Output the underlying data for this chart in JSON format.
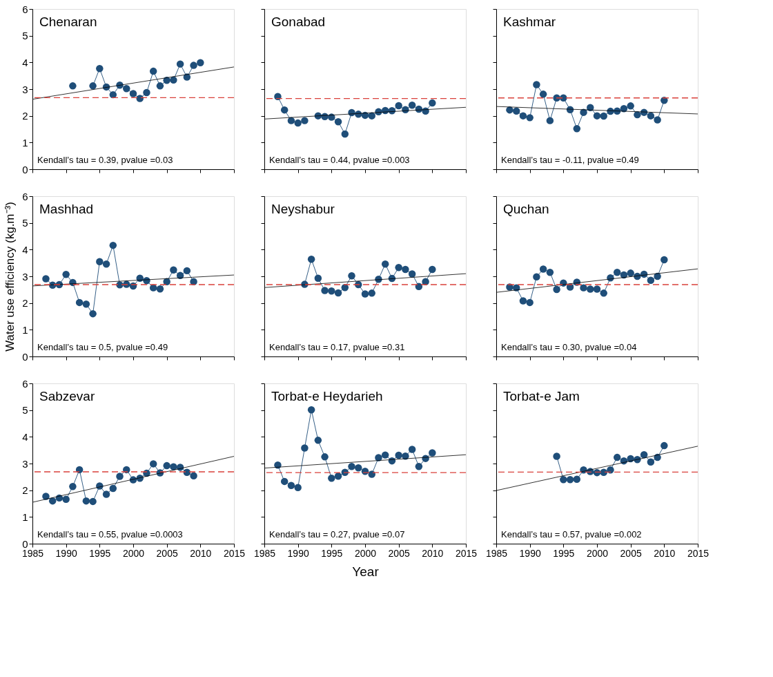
{
  "chart_data": [
    {
      "type": "line",
      "title": "Chenaran",
      "annotations": [
        "Kendall’s tau = 0.39, pvalue =0.03"
      ],
      "tick_labels": "y",
      "xlim": [
        1985,
        2015
      ],
      "xticks": [
        1985,
        1990,
        1995,
        2000,
        2005,
        2010,
        2015
      ],
      "ylim": [
        0,
        6
      ],
      "yticks": [
        0,
        1,
        2,
        3,
        4,
        5,
        6
      ],
      "grid": false,
      "series": [
        {
          "color": "#1f4e79",
          "marker": "circle",
          "x": [
            1991,
            1992,
            1993,
            1994,
            1995,
            1996,
            1997,
            1998,
            1999,
            2000,
            2001,
            2002,
            2003,
            2004,
            2005,
            2006,
            2007,
            2008,
            2009,
            2010
          ],
          "values": [
            3.12,
            null,
            null,
            3.12,
            3.77,
            3.08,
            2.79,
            3.15,
            3.02,
            2.83,
            2.65,
            2.87,
            3.67,
            3.12,
            3.33,
            3.34,
            3.94,
            3.45,
            3.89,
            3.99
          ]
        },
        {
          "type": "line",
          "color": "#000000",
          "marker": "none",
          "x": [
            1985,
            2015
          ],
          "values": [
            2.62,
            3.83
          ]
        }
      ],
      "ref_lines": [
        {
          "axis": "y",
          "value": 2.68,
          "color": "#d9403a",
          "line_style": "dashed"
        }
      ]
    },
    {
      "type": "line",
      "title": "Gonabad",
      "annotations": [
        "Kendall’s tau = 0.44, pvalue =0.003"
      ],
      "tick_labels": false,
      "xlim": [
        1985,
        2015
      ],
      "xticks": [
        1985,
        1990,
        1995,
        2000,
        2005,
        2010,
        2015
      ],
      "ylim": [
        0,
        6
      ],
      "yticks": [
        0,
        1,
        2,
        3,
        4,
        5,
        6
      ],
      "grid": false,
      "series": [
        {
          "color": "#1f4e79",
          "marker": "circle",
          "x": [
            1987,
            1988,
            1989,
            1990,
            1991,
            1992,
            1993,
            1994,
            1995,
            1996,
            1997,
            1998,
            1999,
            2000,
            2001,
            2002,
            2003,
            2004,
            2005,
            2006,
            2007,
            2008,
            2009,
            2010
          ],
          "values": [
            2.72,
            2.22,
            1.82,
            1.73,
            1.82,
            null,
            2.0,
            1.97,
            1.95,
            1.78,
            1.32,
            2.12,
            2.06,
            2.02,
            2.0,
            2.15,
            2.2,
            2.19,
            2.38,
            2.23,
            2.4,
            2.25,
            2.18,
            2.48
          ]
        },
        {
          "type": "line",
          "color": "#000000",
          "marker": "none",
          "x": [
            1985,
            2015
          ],
          "values": [
            1.88,
            2.32
          ]
        }
      ],
      "ref_lines": [
        {
          "axis": "y",
          "value": 2.65,
          "color": "#d9403a",
          "line_style": "dashed"
        }
      ]
    },
    {
      "type": "line",
      "title": "Kashmar",
      "annotations": [
        "Kendall’s tau = -0.11, pvalue =0.49"
      ],
      "tick_labels": false,
      "xlim": [
        1985,
        2015
      ],
      "xticks": [
        1985,
        1990,
        1995,
        2000,
        2005,
        2010,
        2015
      ],
      "ylim": [
        0,
        6
      ],
      "yticks": [
        0,
        1,
        2,
        3,
        4,
        5,
        6
      ],
      "grid": false,
      "series": [
        {
          "color": "#1f4e79",
          "marker": "circle",
          "x": [
            1987,
            1988,
            1989,
            1990,
            1991,
            1992,
            1993,
            1994,
            1995,
            1996,
            1997,
            1998,
            1999,
            2000,
            2001,
            2002,
            2003,
            2004,
            2005,
            2006,
            2007,
            2008,
            2009,
            2010
          ],
          "values": [
            2.22,
            2.18,
            2.0,
            1.93,
            3.17,
            2.81,
            1.82,
            2.67,
            2.67,
            2.23,
            1.52,
            2.13,
            2.31,
            2.0,
            1.99,
            2.17,
            2.18,
            2.27,
            2.37,
            2.04,
            2.13,
            2.0,
            1.85,
            2.58
          ]
        },
        {
          "type": "line",
          "color": "#000000",
          "marker": "none",
          "x": [
            1985,
            2015
          ],
          "values": [
            2.35,
            2.07
          ]
        }
      ],
      "ref_lines": [
        {
          "axis": "y",
          "value": 2.67,
          "color": "#d9403a",
          "line_style": "dashed"
        }
      ]
    },
    {
      "type": "line",
      "title": "Mashhad",
      "ylabel": "Water use efficiency (kg.m⁻³)",
      "annotations": [
        "Kendall’s tau = 0.5, pvalue =0.49"
      ],
      "tick_labels": "y",
      "xlim": [
        1985,
        2015
      ],
      "xticks": [
        1985,
        1990,
        1995,
        2000,
        2005,
        2010,
        2015
      ],
      "ylim": [
        0,
        6
      ],
      "yticks": [
        0,
        1,
        2,
        3,
        4,
        5,
        6
      ],
      "grid": false,
      "series": [
        {
          "color": "#1f4e79",
          "marker": "circle",
          "x": [
            1987,
            1988,
            1989,
            1990,
            1991,
            1992,
            1993,
            1994,
            1995,
            1996,
            1997,
            1998,
            1999,
            2000,
            2001,
            2002,
            2003,
            2004,
            2005,
            2006,
            2007,
            2008,
            2009
          ],
          "values": [
            2.91,
            2.67,
            2.69,
            3.07,
            2.77,
            2.02,
            1.96,
            1.6,
            3.55,
            3.46,
            4.16,
            2.68,
            2.7,
            2.64,
            2.93,
            2.84,
            2.57,
            2.53,
            2.8,
            3.24,
            3.03,
            3.21,
            2.8
          ]
        },
        {
          "type": "line",
          "color": "#000000",
          "marker": "none",
          "x": [
            1985,
            2015
          ],
          "values": [
            2.64,
            3.05
          ]
        }
      ],
      "ref_lines": [
        {
          "axis": "y",
          "value": 2.69,
          "color": "#d9403a",
          "line_style": "dashed"
        }
      ]
    },
    {
      "type": "line",
      "title": "Neyshabur",
      "annotations": [
        "Kendall’s tau = 0.17, pvalue =0.31"
      ],
      "tick_labels": false,
      "xlim": [
        1985,
        2015
      ],
      "xticks": [
        1985,
        1990,
        1995,
        2000,
        2005,
        2010,
        2015
      ],
      "ylim": [
        0,
        6
      ],
      "yticks": [
        0,
        1,
        2,
        3,
        4,
        5,
        6
      ],
      "grid": false,
      "series": [
        {
          "color": "#1f4e79",
          "marker": "circle",
          "x": [
            1991,
            1992,
            1993,
            1994,
            1995,
            1996,
            1997,
            1998,
            1999,
            2000,
            2001,
            2002,
            2003,
            2004,
            2005,
            2006,
            2007,
            2008,
            2009,
            2010
          ],
          "values": [
            2.7,
            3.64,
            2.93,
            2.47,
            2.45,
            2.38,
            2.58,
            3.02,
            2.69,
            2.34,
            2.37,
            2.89,
            3.46,
            2.92,
            3.33,
            3.26,
            3.09,
            2.62,
            2.8,
            3.26
          ]
        },
        {
          "type": "line",
          "color": "#000000",
          "marker": "none",
          "x": [
            1985,
            2015
          ],
          "values": [
            2.58,
            3.1
          ]
        }
      ],
      "ref_lines": [
        {
          "axis": "y",
          "value": 2.69,
          "color": "#d9403a",
          "line_style": "dashed"
        }
      ]
    },
    {
      "type": "line",
      "title": "Quchan",
      "annotations": [
        "Kendall’s tau = 0.30, pvalue =0.04"
      ],
      "tick_labels": false,
      "xlim": [
        1985,
        2015
      ],
      "xticks": [
        1985,
        1990,
        1995,
        2000,
        2005,
        2010,
        2015
      ],
      "ylim": [
        0,
        6
      ],
      "yticks": [
        0,
        1,
        2,
        3,
        4,
        5,
        6
      ],
      "grid": false,
      "series": [
        {
          "color": "#1f4e79",
          "marker": "circle",
          "x": [
            1987,
            1988,
            1989,
            1990,
            1991,
            1992,
            1993,
            1994,
            1995,
            1996,
            1997,
            1998,
            1999,
            2000,
            2001,
            2002,
            2003,
            2004,
            2005,
            2006,
            2007,
            2008,
            2009,
            2010
          ],
          "values": [
            2.6,
            2.57,
            2.08,
            2.02,
            2.98,
            3.27,
            3.15,
            2.51,
            2.75,
            2.6,
            2.78,
            2.57,
            2.52,
            2.52,
            2.37,
            2.94,
            3.15,
            3.05,
            3.12,
            3.0,
            3.08,
            2.85,
            3.0,
            3.62
          ]
        },
        {
          "type": "line",
          "color": "#000000",
          "marker": "none",
          "x": [
            1985,
            2015
          ],
          "values": [
            2.4,
            3.28
          ]
        }
      ],
      "ref_lines": [
        {
          "axis": "y",
          "value": 2.69,
          "color": "#d9403a",
          "line_style": "dashed"
        }
      ]
    },
    {
      "type": "line",
      "title": "Sabzevar",
      "annotations": [
        "Kendall’s tau = 0.55, pvalue =0.0003"
      ],
      "xlim": [
        1985,
        2015
      ],
      "xticks": [
        1985,
        1990,
        1995,
        2000,
        2005,
        2010,
        2015
      ],
      "ylim": [
        0,
        6
      ],
      "yticks": [
        0,
        1,
        2,
        3,
        4,
        5,
        6
      ],
      "grid": false,
      "series": [
        {
          "color": "#1f4e79",
          "marker": "circle",
          "x": [
            1987,
            1988,
            1989,
            1990,
            1991,
            1992,
            1993,
            1994,
            1995,
            1996,
            1997,
            1998,
            1999,
            2000,
            2001,
            2002,
            2003,
            2004,
            2005,
            2006,
            2007,
            2008,
            2009
          ],
          "values": [
            1.77,
            1.6,
            1.71,
            1.66,
            2.14,
            2.77,
            1.6,
            1.58,
            2.16,
            1.85,
            2.07,
            2.52,
            2.77,
            2.39,
            2.45,
            2.64,
            2.99,
            2.65,
            2.92,
            2.88,
            2.86,
            2.67,
            2.54
          ]
        },
        {
          "type": "line",
          "color": "#000000",
          "marker": "none",
          "x": [
            1985,
            2015
          ],
          "values": [
            1.55,
            3.27
          ]
        }
      ],
      "ref_lines": [
        {
          "axis": "y",
          "value": 2.69,
          "color": "#d9403a",
          "line_style": "dashed"
        }
      ]
    },
    {
      "type": "line",
      "title": "Torbat-e Heydarieh",
      "xlabel": "Year",
      "annotations": [
        "Kendall’s tau = 0.27, pvalue =0.07"
      ],
      "tick_labels": "x",
      "xlim": [
        1985,
        2015
      ],
      "xticks": [
        1985,
        1990,
        1995,
        2000,
        2005,
        2010,
        2015
      ],
      "ylim": [
        0,
        6
      ],
      "yticks": [
        0,
        1,
        2,
        3,
        4,
        5,
        6
      ],
      "grid": false,
      "series": [
        {
          "color": "#1f4e79",
          "marker": "circle",
          "x": [
            1987,
            1988,
            1989,
            1990,
            1991,
            1992,
            1993,
            1994,
            1995,
            1996,
            1997,
            1998,
            1999,
            2000,
            2001,
            2002,
            2003,
            2004,
            2005,
            2006,
            2007,
            2008,
            2009,
            2010
          ],
          "values": [
            2.94,
            2.33,
            2.18,
            2.1,
            3.58,
            5.01,
            3.87,
            3.25,
            2.45,
            2.53,
            2.67,
            2.89,
            2.84,
            2.71,
            2.6,
            3.22,
            3.32,
            3.1,
            3.31,
            3.28,
            3.53,
            2.89,
            3.19,
            3.4
          ]
        },
        {
          "type": "line",
          "color": "#000000",
          "marker": "none",
          "x": [
            1985,
            2015
          ],
          "values": [
            2.83,
            3.33
          ]
        }
      ],
      "ref_lines": [
        {
          "axis": "y",
          "value": 2.66,
          "color": "#d9403a",
          "line_style": "dashed"
        }
      ]
    },
    {
      "type": "line",
      "title": "Torbat-e Jam",
      "annotations": [
        "Kendall’s tau = 0.57, pvalue =0.002"
      ],
      "tick_labels": "x",
      "xlim": [
        1985,
        2015
      ],
      "xticks": [
        1985,
        1990,
        1995,
        2000,
        2005,
        2010,
        2015
      ],
      "ylim": [
        0,
        6
      ],
      "yticks": [
        0,
        1,
        2,
        3,
        4,
        5,
        6
      ],
      "grid": false,
      "series": [
        {
          "color": "#1f4e79",
          "marker": "circle",
          "x": [
            1994,
            1995,
            1996,
            1997,
            1998,
            1999,
            2000,
            2001,
            2002,
            2003,
            2004,
            2005,
            2006,
            2007,
            2008,
            2009,
            2010
          ],
          "values": [
            3.27,
            2.4,
            2.4,
            2.41,
            2.76,
            2.7,
            2.66,
            2.67,
            2.76,
            3.23,
            3.1,
            3.18,
            3.15,
            3.33,
            3.06,
            3.23,
            3.67
          ]
        },
        {
          "type": "line",
          "color": "#000000",
          "marker": "none",
          "x": [
            1985,
            2015
          ],
          "values": [
            1.99,
            3.65
          ]
        }
      ],
      "ref_lines": [
        {
          "axis": "y",
          "value": 2.68,
          "color": "#d9403a",
          "line_style": "dashed"
        }
      ]
    }
  ]
}
